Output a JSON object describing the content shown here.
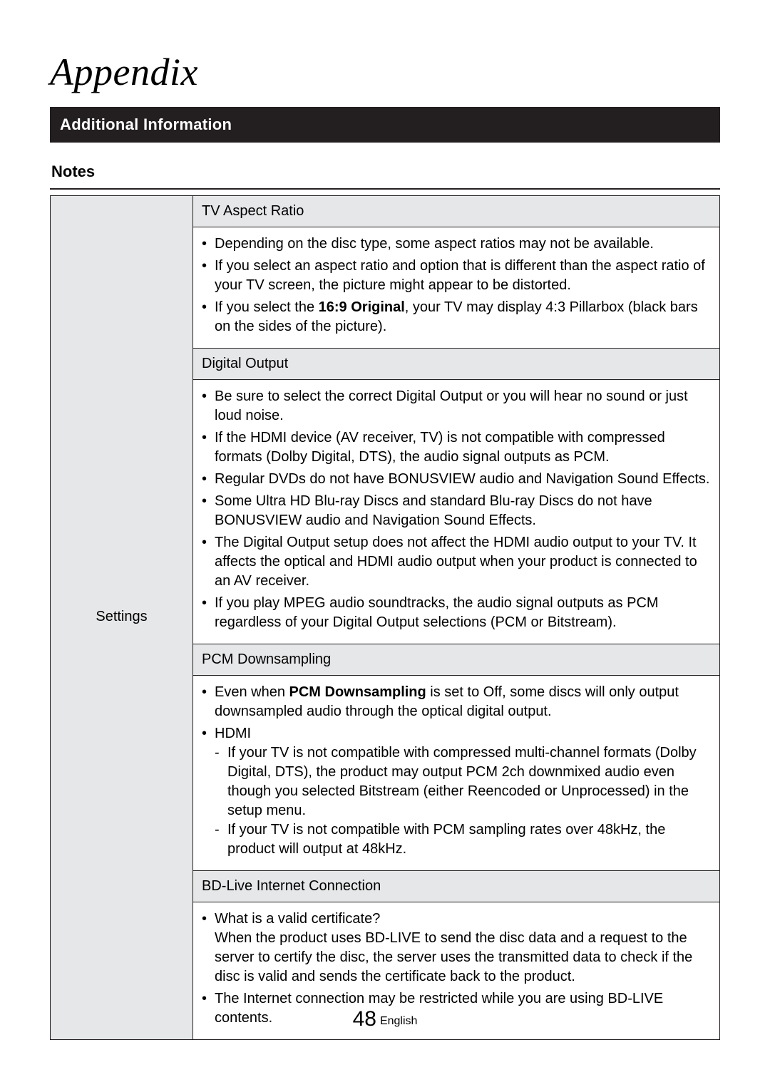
{
  "page": {
    "title": "Appendix",
    "section_bar": "Additional Information",
    "notes_heading": "Notes",
    "page_number": "48",
    "language_label": "English"
  },
  "table": {
    "row_label": "Settings",
    "groups": [
      {
        "heading": "TV Aspect Ratio",
        "items": [
          {
            "text": "Depending on the disc type, some aspect ratios may not be available."
          },
          {
            "text": "If you select an aspect ratio and option that is different than the aspect ratio of your TV screen, the picture might appear to be distorted."
          },
          {
            "prefix": "If you select the ",
            "bold": "16:9 Original",
            "suffix": ", your TV may display 4:3 Pillarbox (black bars on the sides of the picture)."
          }
        ]
      },
      {
        "heading": "Digital Output",
        "items": [
          {
            "text": "Be sure to select the correct Digital Output or you will hear no sound or just loud noise."
          },
          {
            "text": "If the HDMI device (AV receiver, TV) is not compatible with compressed formats (Dolby Digital, DTS), the audio signal outputs as PCM."
          },
          {
            "text": "Regular DVDs do not have BONUSVIEW audio and Navigation Sound Effects."
          },
          {
            "text": "Some Ultra HD Blu-ray Discs and standard Blu-ray Discs do not have BONUSVIEW audio and Navigation Sound Effects."
          },
          {
            "text": "The Digital Output setup does not affect the HDMI audio output to your TV. It affects the optical and HDMI audio output when your product is connected to an AV receiver."
          },
          {
            "text": "If you play MPEG audio soundtracks, the audio signal outputs as PCM regardless of your Digital Output selections (PCM or Bitstream)."
          }
        ]
      },
      {
        "heading": "PCM Downsampling",
        "items": [
          {
            "prefix": "Even when ",
            "bold": "PCM Downsampling",
            "suffix": " is set to Off, some discs will only output downsampled audio through the optical digital output."
          },
          {
            "text": "HDMI",
            "sub": [
              {
                "text": "If your TV is not compatible with compressed multi-channel formats (Dolby Digital, DTS), the product may output PCM 2ch downmixed audio even though you selected Bitstream (either Reencoded or Unprocessed) in the setup menu."
              },
              {
                "text": "If your TV is not compatible with PCM sampling rates over 48kHz, the product will output at 48kHz."
              }
            ]
          }
        ]
      },
      {
        "heading": "BD-Live Internet Connection",
        "items": [
          {
            "text": "What is a valid certificate?",
            "plain_after": "When the product uses BD-LIVE to send the disc data and a request to the server to certify the disc, the server uses the transmitted data to check if the disc is valid and sends the certificate back to the product."
          },
          {
            "text": "The Internet connection may be restricted while you are using BD-LIVE contents."
          }
        ]
      }
    ]
  }
}
